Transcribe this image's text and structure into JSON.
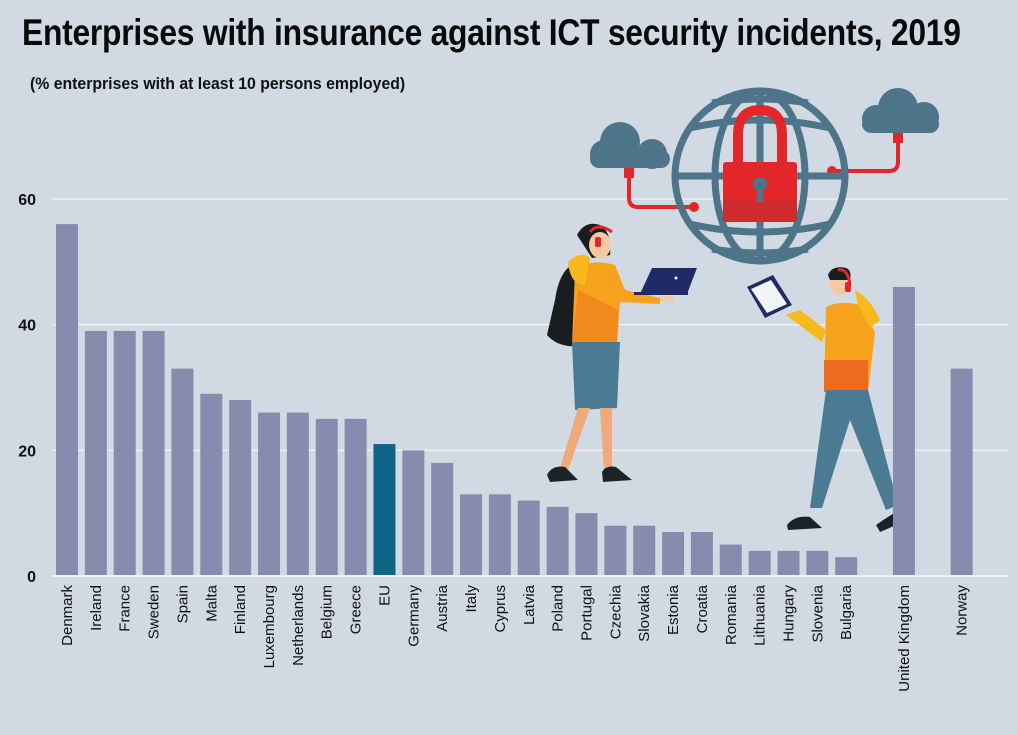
{
  "header": {
    "title": "Enterprises with insurance against ICT security incidents, 2019",
    "subtitle": "(% enterprises with at least 10 persons employed)"
  },
  "colors": {
    "background": "#d1d9e2",
    "bar": "#878cae",
    "bar_highlight": "#0e6585",
    "gridline": "#eef2f6",
    "text": "#111111",
    "illustration_globe": "#4d7489",
    "illustration_lock": "#e3262a",
    "illustration_sweater": "#f6a21c",
    "illustration_pants": "#4b7a93",
    "illustration_shoes": "#1d2226",
    "illustration_device": "#1f2a66"
  },
  "illustration": {
    "description": "Globe with padlock connected to two clouds; two people wearing headsets holding a laptop and a tablet",
    "icons": [
      "globe-icon",
      "padlock-icon",
      "cloud-icon",
      "cloud-icon",
      "laptop-icon",
      "tablet-icon",
      "headset-icon"
    ]
  },
  "chart_data": {
    "type": "bar",
    "title": "Enterprises with insurance against ICT security incidents, 2019",
    "subtitle": "(% enterprises with at least 10 persons employed)",
    "xlabel": "",
    "ylabel": "",
    "ylim": [
      0,
      60
    ],
    "yticks": [
      0,
      20,
      40,
      60
    ],
    "grid": true,
    "legend": "none",
    "categories": [
      "Denmark",
      "Ireland",
      "France",
      "Sweden",
      "Spain",
      "Malta",
      "Finland",
      "Luxembourg",
      "Netherlands",
      "Belgium",
      "Greece",
      "EU",
      "Germany",
      "Austria",
      "Italy",
      "Cyprus",
      "Latvia",
      "Poland",
      "Portugal",
      "Czechia",
      "Slovakia",
      "Estonia",
      "Croatia",
      "Romania",
      "Lithuania",
      "Hungary",
      "Slovenia",
      "Bulgaria",
      "United Kingdom",
      "Norway"
    ],
    "values": [
      56,
      39,
      39,
      39,
      33,
      29,
      28,
      26,
      26,
      25,
      25,
      21,
      20,
      18,
      13,
      13,
      12,
      11,
      10,
      8,
      8,
      7,
      7,
      5,
      4,
      4,
      4,
      3,
      46,
      33
    ],
    "highlight": [
      "EU"
    ],
    "group_gaps_before": [
      "United Kingdom",
      "Norway"
    ]
  }
}
